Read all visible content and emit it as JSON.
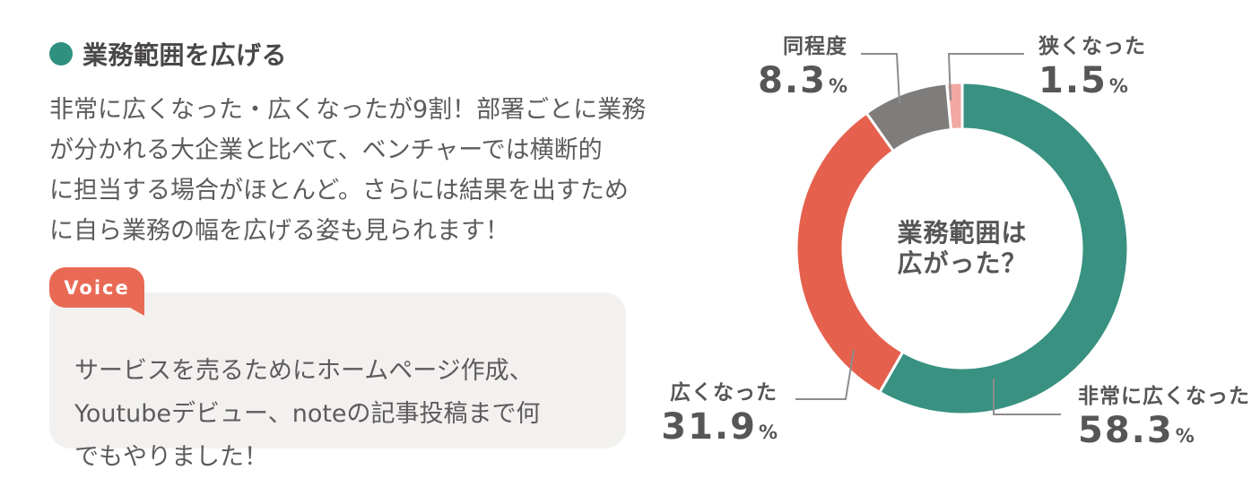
{
  "header": {
    "title": "業務範囲を広げる",
    "bullet_color": "#2f9080"
  },
  "description": "非常に広くなった・広くなったが9割！部署ごとに業務\nが分かれる大企業と比べて、ベンチャーでは横断的\nに担当する場合がほとんど。さらには結果を出すため\nに自ら業務の幅を広げる姿も見られます！",
  "voice": {
    "badge_label": "Voice",
    "badge_color": "#e96a54",
    "bubble_color": "#f2f1ef",
    "quote": "サービスを売るためにホームページ作成、\nYoutubeデビュー、noteの記事投稿まで何\nでもやりました！"
  },
  "chart_data": {
    "type": "pie",
    "variant": "donut",
    "title": "業務範囲は\n広がった？",
    "unit": "%",
    "start_angle_deg": 0,
    "direction": "clockwise",
    "inner_radius_ratio": 0.72,
    "separator_color": "#ffffff",
    "legend_position": "callouts",
    "segments": [
      {
        "label": "非常に広くなった",
        "value": 58.3,
        "color": "#389181"
      },
      {
        "label": "広くなった",
        "value": 31.9,
        "color": "#e5604d"
      },
      {
        "label": "同程度",
        "value": 8.3,
        "color": "#7f7d7c"
      },
      {
        "label": "狭くなった",
        "value": 1.5,
        "color": "#f2a9a4"
      }
    ]
  }
}
